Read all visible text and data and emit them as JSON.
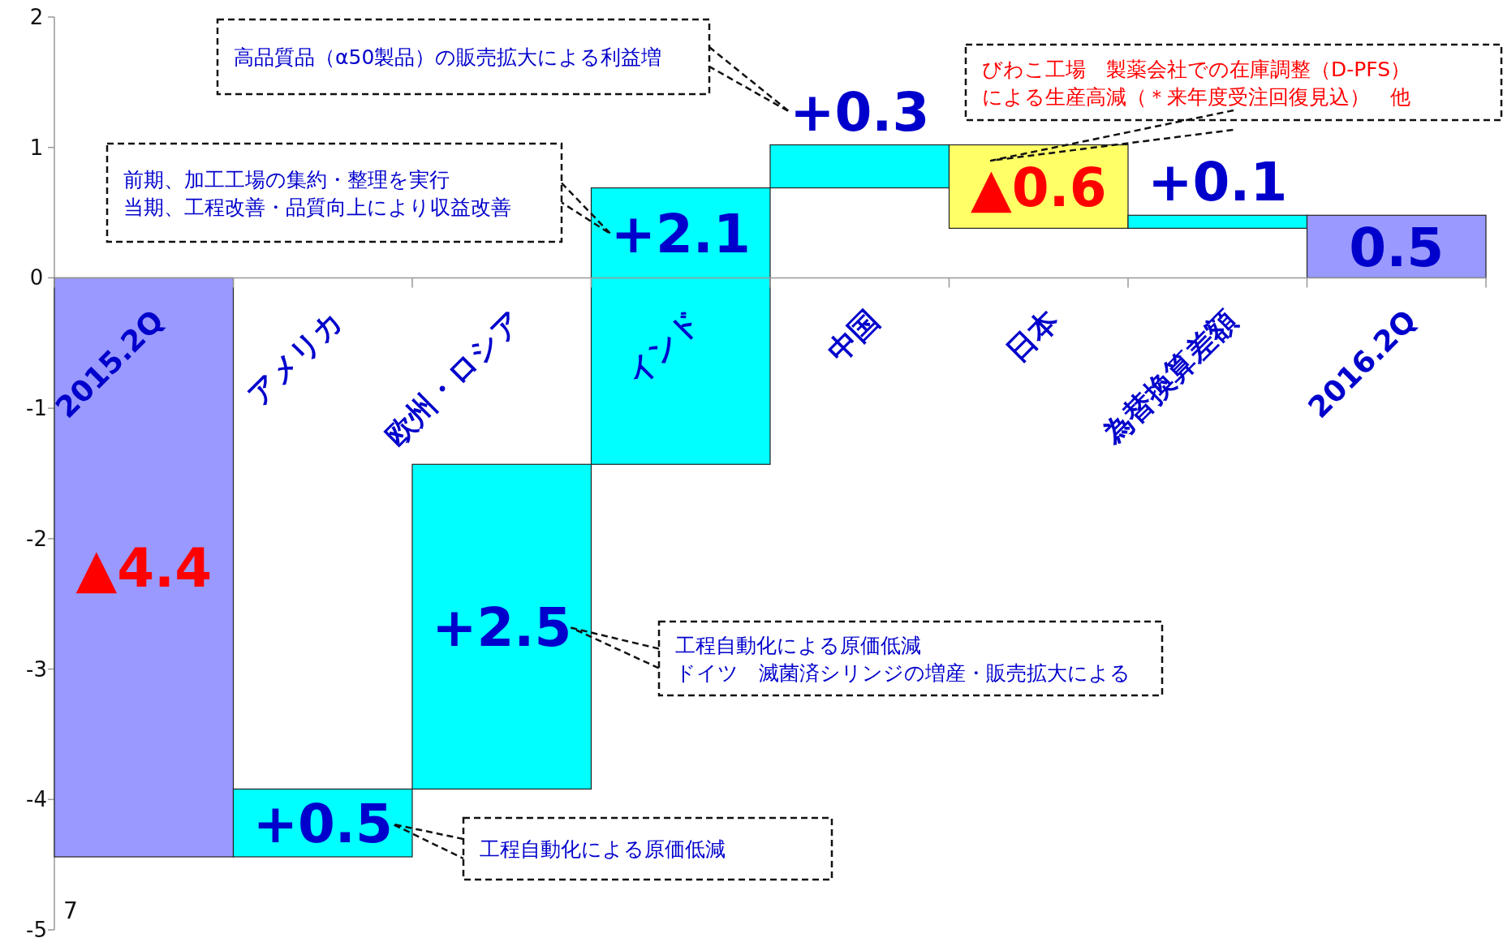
{
  "chart_data": {
    "type": "bar",
    "categories": [
      "2015.2Q",
      "アメリカ",
      "欧州・ロシア",
      "インド",
      "中国",
      "日本",
      "為替換算差額",
      "2016.2Q"
    ],
    "base": [
      0,
      -4.44,
      -3.92,
      -1.43,
      0.69,
      1.02,
      0.38,
      0
    ],
    "values": [
      -4.44,
      0.52,
      2.49,
      2.12,
      0.33,
      -0.64,
      0.1,
      0.48
    ],
    "colors": [
      "#9999ff",
      "#00ffff",
      "#00ffff",
      "#00ffff",
      "#00ffff",
      "#ffff66",
      "#00ffff",
      "#9999ff"
    ],
    "value_labels": [
      "▲4.4",
      "+0.5",
      "+2.5",
      "+2.1",
      "+0.3",
      "▲0.6",
      "+0.1",
      "0.5"
    ],
    "ylim": [
      -5,
      2
    ],
    "yticks": [
      -5,
      -4,
      -3,
      -2,
      -1,
      0,
      1,
      2
    ],
    "grid": false,
    "annotations": [
      "高品質品（α50製品）の販売拡大による利益増",
      "前期、加工工場の集約・整理を実行",
      "当期、工程改善・品質向上により収益改善",
      "びわこ工場　製薬会社での在庫調整（D-PFS）",
      "による生産高減（＊来年度受注回復見込）　他",
      "工程自動化による原価低減",
      "ドイツ　滅菌済シリンジの増産・販売拡大による",
      "工程自動化による原価低減",
      "7"
    ]
  }
}
